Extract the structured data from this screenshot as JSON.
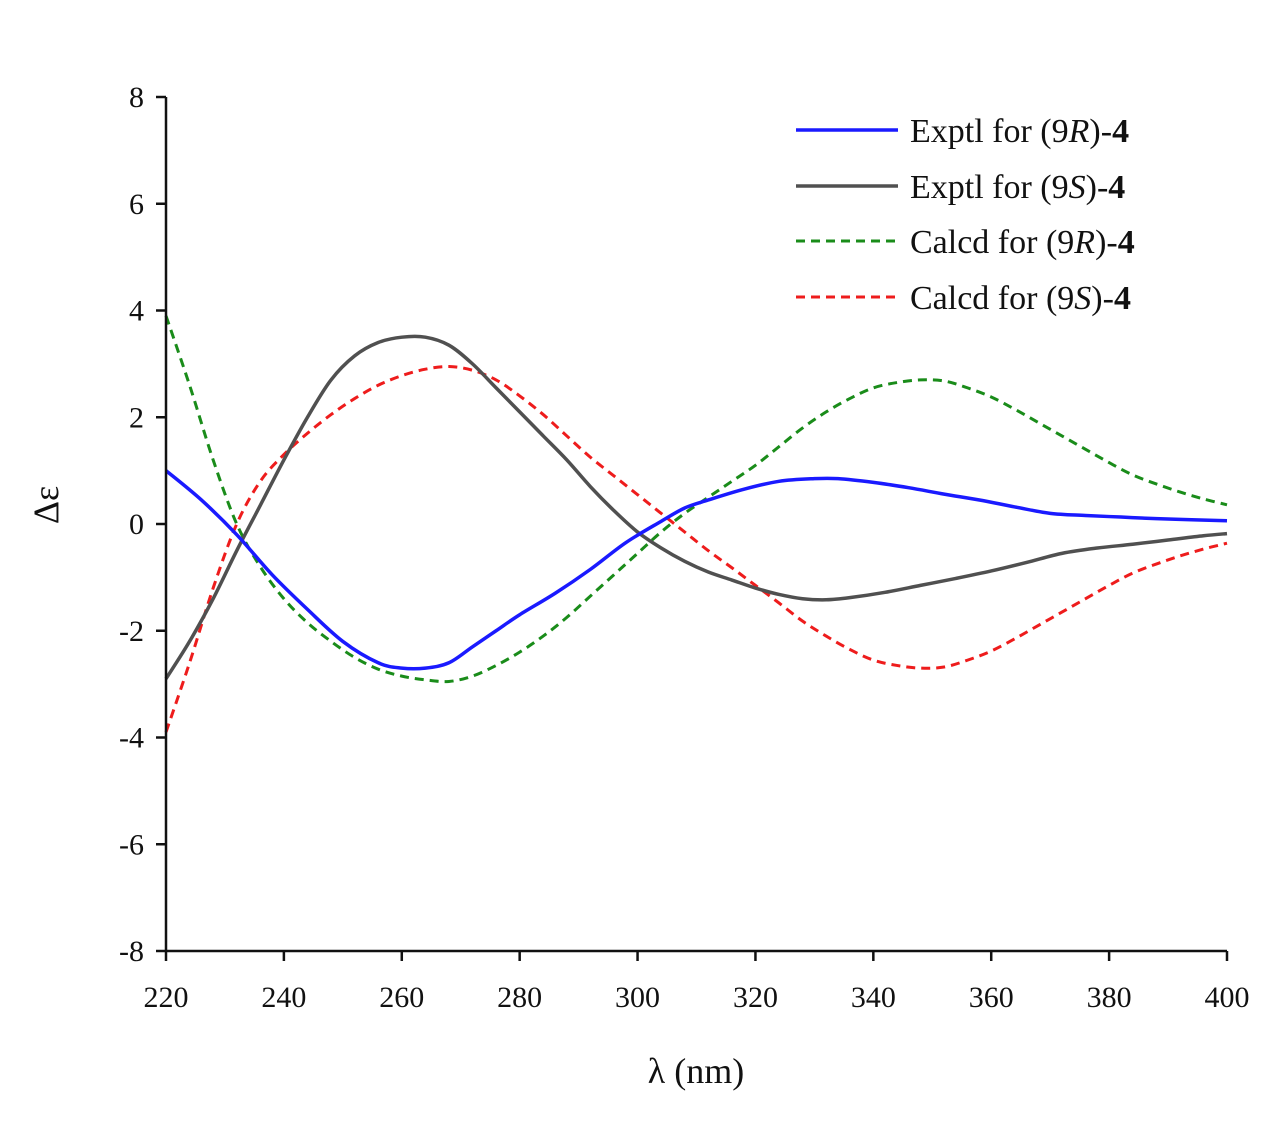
{
  "chart_data": {
    "type": "line",
    "title": "",
    "xlabel": "λ (nm)",
    "ylabel": "Δε",
    "xlim": [
      220,
      400
    ],
    "ylim": [
      -8,
      8
    ],
    "x_ticks": [
      220,
      240,
      260,
      280,
      300,
      320,
      340,
      360,
      380,
      400
    ],
    "y_ticks": [
      8,
      6,
      4,
      2,
      0,
      -2,
      -4,
      -6,
      -8
    ],
    "x_tick_labels": [
      "220",
      "240",
      "260",
      "280",
      "300",
      "320",
      "340",
      "360",
      "380",
      "400"
    ],
    "y_tick_labels": [
      "8",
      "6",
      "4",
      "2",
      "0",
      "-2",
      "-4",
      "-6",
      "-8"
    ],
    "grid": false,
    "legend_position": "top-right",
    "series": [
      {
        "name": "Exptl for (9R)-4",
        "legend": {
          "prefix": "Exptl for (9",
          "config": "R",
          "suffix": ")-",
          "compound": "4"
        },
        "color": "#1a1aff",
        "dash": "solid",
        "x": [
          220,
          226,
          232,
          238,
          244,
          250,
          256,
          260,
          264,
          268,
          272,
          276,
          280,
          286,
          292,
          298,
          304,
          308,
          312,
          318,
          324,
          330,
          334,
          340,
          346,
          352,
          358,
          364,
          370,
          376,
          382,
          388,
          394,
          400
        ],
        "y": [
          1.0,
          0.45,
          -0.2,
          -0.95,
          -1.6,
          -2.2,
          -2.6,
          -2.7,
          -2.7,
          -2.6,
          -2.3,
          -2.0,
          -1.7,
          -1.3,
          -0.85,
          -0.35,
          0.05,
          0.3,
          0.45,
          0.65,
          0.8,
          0.85,
          0.85,
          0.78,
          0.68,
          0.56,
          0.45,
          0.32,
          0.2,
          0.16,
          0.13,
          0.1,
          0.08,
          0.06
        ]
      },
      {
        "name": "Exptl for (9S)-4",
        "legend": {
          "prefix": "Exptl for (9",
          "config": "S",
          "suffix": ")-",
          "compound": "4"
        },
        "color": "#505050",
        "dash": "solid",
        "x": [
          220,
          224,
          228,
          232,
          236,
          240,
          244,
          248,
          252,
          256,
          260,
          264,
          268,
          272,
          276,
          280,
          284,
          288,
          292,
          296,
          300,
          304,
          308,
          312,
          316,
          320,
          324,
          328,
          332,
          336,
          342,
          348,
          354,
          360,
          366,
          372,
          378,
          384,
          390,
          396,
          400
        ],
        "y": [
          -2.9,
          -2.2,
          -1.4,
          -0.5,
          0.35,
          1.2,
          2.0,
          2.7,
          3.15,
          3.4,
          3.5,
          3.5,
          3.35,
          3.0,
          2.55,
          2.1,
          1.65,
          1.2,
          0.7,
          0.25,
          -0.15,
          -0.45,
          -0.7,
          -0.9,
          -1.05,
          -1.2,
          -1.32,
          -1.4,
          -1.42,
          -1.38,
          -1.28,
          -1.15,
          -1.02,
          -0.88,
          -0.72,
          -0.55,
          -0.45,
          -0.38,
          -0.3,
          -0.22,
          -0.18
        ]
      },
      {
        "name": "Calcd for (9R)-4",
        "legend": {
          "prefix": "Calcd for (9",
          "config": "R",
          "suffix": ")-",
          "compound": "4"
        },
        "color": "#1a8c1a",
        "dash": "dashed",
        "x": [
          220,
          224,
          228,
          232,
          236,
          240,
          244,
          248,
          252,
          256,
          260,
          264,
          268,
          272,
          276,
          280,
          284,
          288,
          292,
          296,
          300,
          304,
          308,
          312,
          316,
          320,
          324,
          328,
          332,
          336,
          340,
          344,
          348,
          352,
          356,
          360,
          364,
          368,
          372,
          376,
          380,
          384,
          388,
          392,
          396,
          400
        ],
        "y": [
          3.9,
          2.6,
          1.2,
          0.0,
          -0.8,
          -1.4,
          -1.85,
          -2.2,
          -2.5,
          -2.72,
          -2.85,
          -2.92,
          -2.95,
          -2.85,
          -2.65,
          -2.4,
          -2.1,
          -1.75,
          -1.35,
          -0.95,
          -0.55,
          -0.15,
          0.2,
          0.5,
          0.8,
          1.1,
          1.45,
          1.8,
          2.1,
          2.35,
          2.55,
          2.65,
          2.7,
          2.68,
          2.55,
          2.38,
          2.15,
          1.9,
          1.65,
          1.4,
          1.15,
          0.92,
          0.75,
          0.6,
          0.47,
          0.36
        ]
      },
      {
        "name": "Calcd for (9S)-4",
        "legend": {
          "prefix": "Calcd for (9",
          "config": "S",
          "suffix": ")-",
          "compound": "4"
        },
        "color": "#ee1c1c",
        "dash": "dashed",
        "x": [
          220,
          224,
          228,
          232,
          236,
          240,
          244,
          248,
          252,
          256,
          260,
          264,
          268,
          272,
          276,
          280,
          284,
          288,
          292,
          296,
          300,
          304,
          308,
          312,
          316,
          320,
          324,
          328,
          332,
          336,
          340,
          344,
          348,
          352,
          356,
          360,
          364,
          368,
          372,
          376,
          380,
          384,
          388,
          392,
          396,
          400
        ],
        "y": [
          -3.9,
          -2.6,
          -1.2,
          0.0,
          0.8,
          1.3,
          1.7,
          2.05,
          2.35,
          2.6,
          2.78,
          2.9,
          2.95,
          2.88,
          2.7,
          2.4,
          2.05,
          1.65,
          1.25,
          0.9,
          0.55,
          0.2,
          -0.15,
          -0.5,
          -0.82,
          -1.15,
          -1.48,
          -1.82,
          -2.1,
          -2.35,
          -2.55,
          -2.65,
          -2.7,
          -2.68,
          -2.55,
          -2.38,
          -2.15,
          -1.9,
          -1.65,
          -1.4,
          -1.15,
          -0.92,
          -0.75,
          -0.6,
          -0.47,
          -0.36
        ]
      }
    ]
  }
}
